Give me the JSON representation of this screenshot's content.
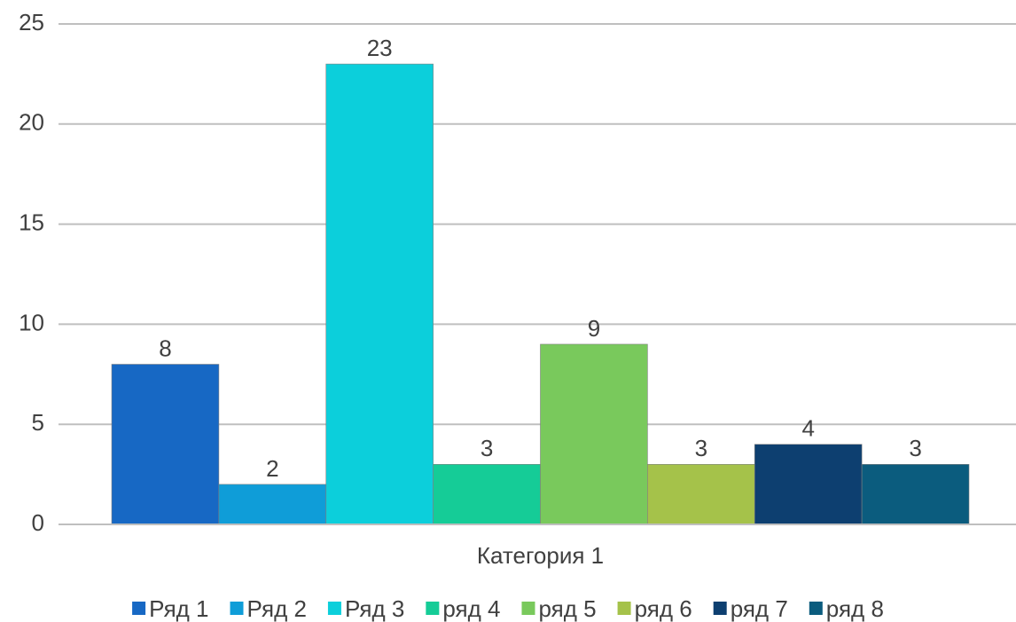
{
  "chart_data": {
    "type": "bar",
    "categories": [
      "Категория 1"
    ],
    "series": [
      {
        "name": "Ряд 1",
        "color": "#1768c4",
        "values": [
          8
        ]
      },
      {
        "name": "Ряд 2",
        "color": "#0f9dd8",
        "values": [
          2
        ]
      },
      {
        "name": "Ряд 3",
        "color": "#0ccfdb",
        "values": [
          23
        ]
      },
      {
        "name": "ряд 4",
        "color": "#15cc97",
        "values": [
          3
        ]
      },
      {
        "name": "ряд 5",
        "color": "#79c95c",
        "values": [
          9
        ]
      },
      {
        "name": "ряд 6",
        "color": "#a5c24a",
        "values": [
          3
        ]
      },
      {
        "name": "ряд 7",
        "color": "#0d3f70",
        "values": [
          4
        ]
      },
      {
        "name": "ряд 8",
        "color": "#0b5c7e",
        "values": [
          3
        ]
      }
    ],
    "ylim": [
      0,
      25
    ],
    "yticks": [
      0,
      5,
      10,
      15,
      20,
      25
    ],
    "grid": true,
    "legend": "bottom"
  }
}
